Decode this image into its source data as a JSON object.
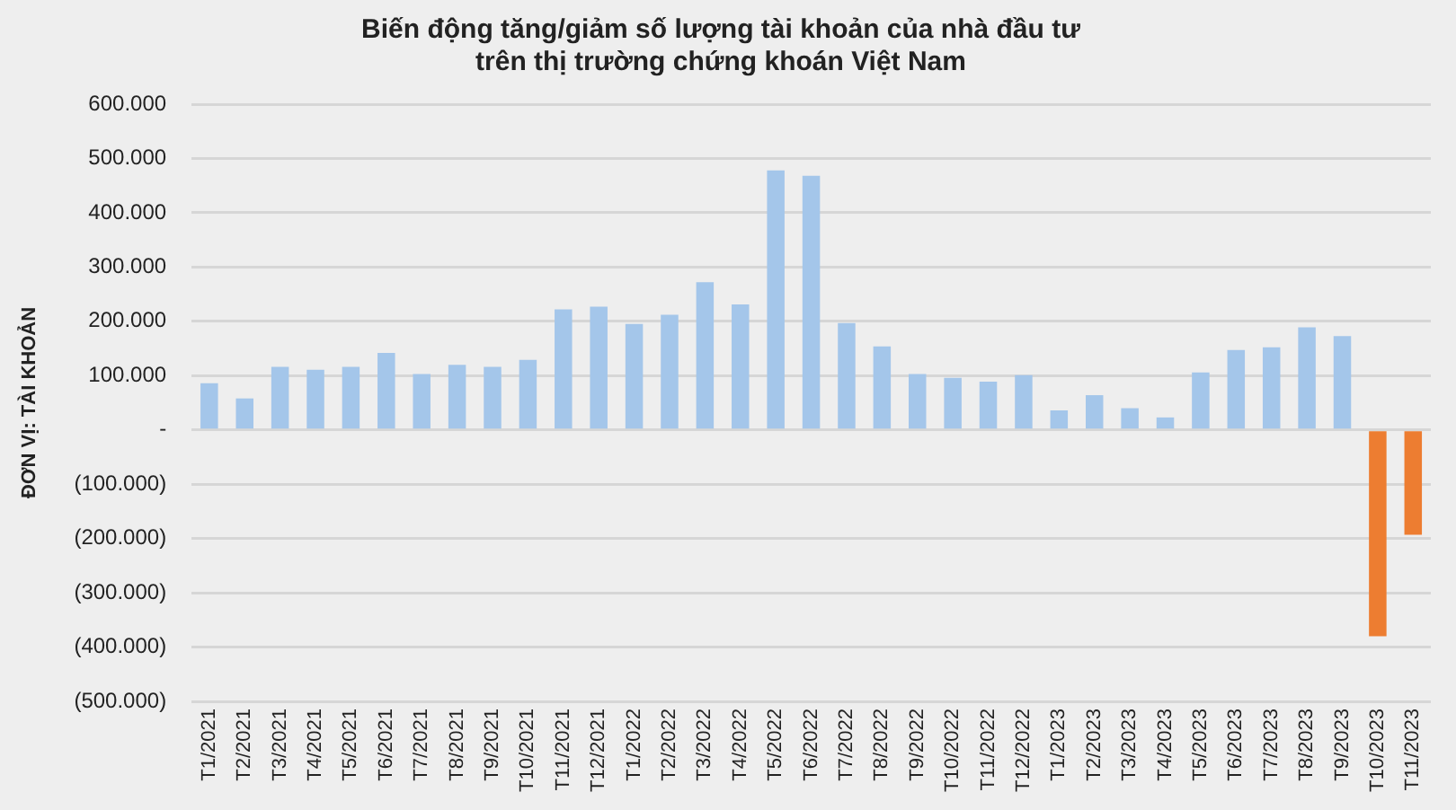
{
  "chart_data": {
    "type": "bar",
    "title": "Biến động tăng/giảm số lượng tài khoản của nhà đầu tư trên thị trường chứng khoán Việt Nam",
    "ylabel": "ĐƠN VỊ: TÀI KHOẢN",
    "categories": [
      "T1/2021",
      "T2/2021",
      "T3/2021",
      "T4/2021",
      "T5/2021",
      "T6/2021",
      "T7/2021",
      "T8/2021",
      "T9/2021",
      "T10/2021",
      "T11/2021",
      "T12/2021",
      "T1/2022",
      "T2/2022",
      "T3/2022",
      "T4/2022",
      "T5/2022",
      "T6/2022",
      "T7/2022",
      "T8/2022",
      "T9/2022",
      "T10/2022",
      "T11/2022",
      "T12/2022",
      "T1/2023",
      "T2/2023",
      "T3/2023",
      "T4/2023",
      "T5/2023",
      "T6/2023",
      "T7/2023",
      "T8/2023",
      "T9/2023",
      "T10/2023",
      "T11/2023"
    ],
    "values": [
      86000,
      58000,
      116000,
      111000,
      116000,
      142000,
      103000,
      120000,
      116000,
      129000,
      222000,
      227000,
      195000,
      212000,
      272000,
      231000,
      478000,
      468000,
      197000,
      154000,
      103000,
      96000,
      89000,
      101000,
      36000,
      64000,
      40000,
      23000,
      106000,
      147000,
      152000,
      189000,
      173000,
      -380000,
      -193000
    ],
    "colors": [
      "#a4c6ea",
      "#a4c6ea",
      "#a4c6ea",
      "#a4c6ea",
      "#a4c6ea",
      "#a4c6ea",
      "#a4c6ea",
      "#a4c6ea",
      "#a4c6ea",
      "#a4c6ea",
      "#a4c6ea",
      "#a4c6ea",
      "#a4c6ea",
      "#a4c6ea",
      "#a4c6ea",
      "#a4c6ea",
      "#a4c6ea",
      "#a4c6ea",
      "#a4c6ea",
      "#a4c6ea",
      "#a4c6ea",
      "#a4c6ea",
      "#a4c6ea",
      "#a4c6ea",
      "#a4c6ea",
      "#a4c6ea",
      "#a4c6ea",
      "#a4c6ea",
      "#a4c6ea",
      "#a4c6ea",
      "#a4c6ea",
      "#a4c6ea",
      "#a4c6ea",
      "#ed7d31",
      "#ed7d31"
    ],
    "ylim": [
      -500000,
      600000
    ],
    "yticks": [
      {
        "value": -500000,
        "label": "(500.000)"
      },
      {
        "value": -400000,
        "label": "(400.000)"
      },
      {
        "value": -300000,
        "label": "(300.000)"
      },
      {
        "value": -200000,
        "label": "(200.000)"
      },
      {
        "value": -100000,
        "label": "(100.000)"
      },
      {
        "value": 0,
        "label": "-"
      },
      {
        "value": 100000,
        "label": "100.000"
      },
      {
        "value": 200000,
        "label": "200.000"
      },
      {
        "value": 300000,
        "label": "300.000"
      },
      {
        "value": 400000,
        "label": "400.000"
      },
      {
        "value": 500000,
        "label": "500.000"
      },
      {
        "value": 600000,
        "label": "600.000"
      }
    ],
    "grid": "y",
    "legend": false
  }
}
